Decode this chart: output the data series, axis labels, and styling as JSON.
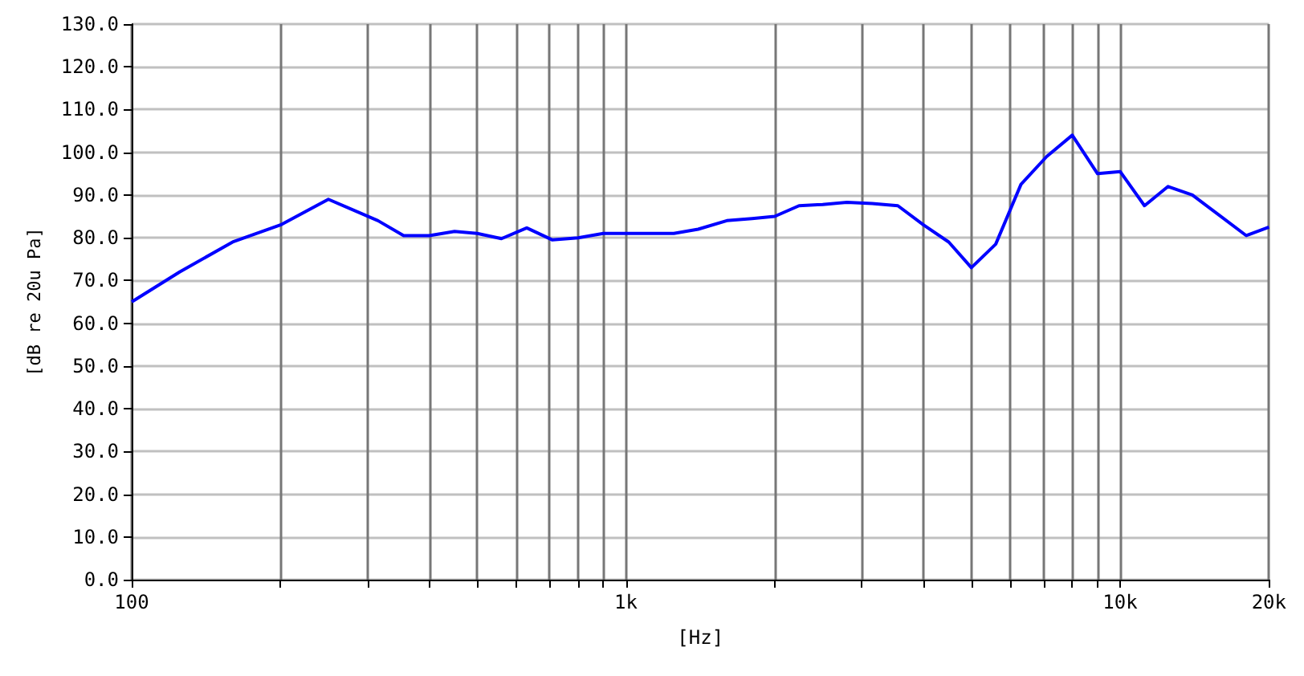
{
  "chart_data": {
    "type": "line",
    "xlabel": "[Hz]",
    "ylabel": "[dB re 20u Pa]",
    "x": [
      100,
      125,
      160,
      200,
      250,
      315,
      355,
      400,
      450,
      500,
      560,
      630,
      710,
      800,
      900,
      1000,
      1250,
      1400,
      1600,
      1800,
      2000,
      2240,
      2500,
      2800,
      3150,
      3550,
      4000,
      4500,
      5000,
      5600,
      6300,
      7100,
      8000,
      9000,
      10000,
      11200,
      12500,
      14000,
      18000,
      20000
    ],
    "series": [
      {
        "color": "#0000ff",
        "values": [
          65,
          72,
          79,
          83,
          89,
          84,
          80.5,
          80.5,
          81.5,
          81,
          79.8,
          82.3,
          79.5,
          80,
          81,
          81,
          81,
          82,
          84,
          84.5,
          85,
          87.5,
          87.8,
          88.3,
          88,
          87.5,
          83,
          79,
          73,
          78.5,
          92.5,
          99,
          104,
          95,
          95.5,
          87.5,
          92,
          90,
          80.5,
          82.5
        ]
      }
    ],
    "log": "x",
    "xlim": [
      100,
      20000
    ],
    "xticks": [
      100,
      {
        "value": 200,
        "label": null
      },
      {
        "value": 300,
        "label": null
      },
      {
        "value": 400,
        "label": null
      },
      {
        "value": 500,
        "label": null
      },
      {
        "value": 600,
        "label": null
      },
      {
        "value": 700,
        "label": null
      },
      {
        "value": 800,
        "label": null
      },
      {
        "value": 900,
        "label": null
      },
      {
        "value": 1000,
        "label": "1k"
      },
      {
        "value": 2000,
        "label": null
      },
      {
        "value": 3000,
        "label": null
      },
      {
        "value": 4000,
        "label": null
      },
      {
        "value": 5000,
        "label": null
      },
      {
        "value": 6000,
        "label": null
      },
      {
        "value": 7000,
        "label": null
      },
      {
        "value": 8000,
        "label": null
      },
      {
        "value": 9000,
        "label": null
      },
      {
        "value": 10000,
        "label": "10k"
      },
      {
        "value": 20000,
        "label": "20k"
      }
    ],
    "ylim": [
      0,
      130
    ],
    "yticks": [
      {
        "value": 0,
        "label": "0.0"
      },
      {
        "value": 10,
        "label": "10.0"
      },
      {
        "value": 20,
        "label": "20.0"
      },
      {
        "value": 30,
        "label": "30.0"
      },
      {
        "value": 40,
        "label": "40.0"
      },
      {
        "value": 50,
        "label": "50.0"
      },
      {
        "value": 60,
        "label": "60.0"
      },
      {
        "value": 70,
        "label": "70.0"
      },
      {
        "value": 80,
        "label": "80.0"
      },
      {
        "value": 90,
        "label": "90.0"
      },
      {
        "value": 100,
        "label": "100.0"
      },
      {
        "value": 110,
        "label": "110.0"
      },
      {
        "value": 120,
        "label": "120.0"
      },
      {
        "value": 130,
        "label": "130.0"
      }
    ],
    "grid": true,
    "marker": "none",
    "line_style": "solid"
  }
}
